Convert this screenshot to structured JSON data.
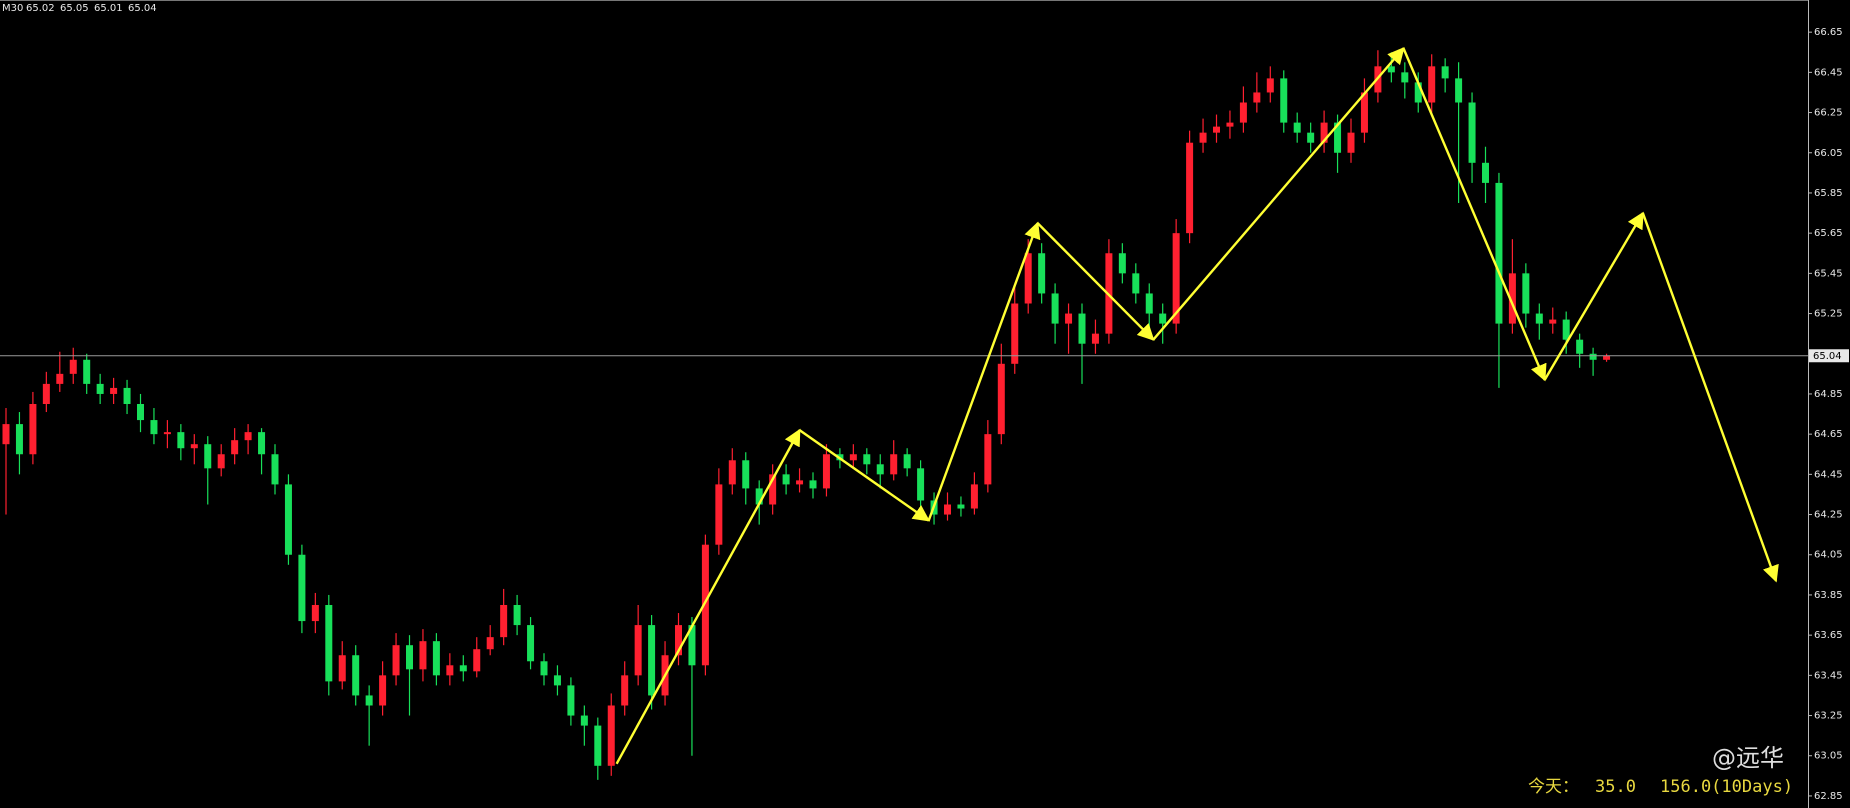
{
  "chart_data": {
    "type": "candlestick",
    "timeframe": "M30",
    "up_color": "#ff2030",
    "down_color": "#18e05a",
    "ylim": [
      62.79,
      66.81
    ],
    "yticks": [
      62.85,
      63.05,
      63.25,
      63.45,
      63.65,
      63.85,
      64.05,
      64.25,
      64.45,
      64.65,
      64.85,
      65.05,
      65.25,
      65.45,
      65.65,
      65.85,
      66.05,
      66.25,
      66.45,
      66.65
    ],
    "open": [
      64.6,
      64.7,
      64.55,
      64.8,
      64.9,
      64.95,
      65.02,
      64.9,
      64.85,
      64.88,
      64.8,
      64.72,
      64.65,
      64.66,
      64.58,
      64.6,
      64.48,
      64.55,
      64.62,
      64.66,
      64.55,
      64.4,
      64.05,
      63.72,
      63.8,
      63.42,
      63.55,
      63.35,
      63.3,
      63.45,
      63.6,
      63.48,
      63.62,
      63.45,
      63.5,
      63.47,
      63.58,
      63.64,
      63.8,
      63.7,
      63.52,
      63.45,
      63.4,
      63.25,
      63.2,
      63.0,
      63.3,
      63.45,
      63.7,
      63.35,
      63.55,
      63.7,
      63.5,
      64.1,
      64.4,
      64.52,
      64.38,
      64.3,
      64.45,
      64.4,
      64.42,
      64.38,
      64.55,
      64.52,
      64.55,
      64.5,
      64.45,
      64.55,
      64.48,
      64.32,
      64.25,
      64.3,
      64.28,
      64.4,
      64.65,
      65.0,
      65.3,
      65.55,
      65.35,
      65.2,
      65.25,
      65.1,
      65.15,
      65.55,
      65.45,
      65.35,
      65.25,
      65.2,
      65.65,
      66.1,
      66.15,
      66.18,
      66.2,
      66.3,
      66.35,
      66.42,
      66.2,
      66.15,
      66.1,
      66.2,
      66.05,
      66.15,
      66.35,
      66.48,
      66.45,
      66.4,
      66.3,
      66.48,
      66.42,
      66.3,
      66.0,
      65.9,
      65.2,
      65.45,
      65.25,
      65.2,
      65.22,
      65.12,
      65.05,
      65.02
    ],
    "high": [
      64.78,
      64.76,
      64.86,
      64.96,
      65.06,
      65.08,
      65.05,
      64.95,
      64.93,
      64.92,
      64.85,
      64.78,
      64.72,
      64.7,
      64.65,
      64.64,
      64.6,
      64.68,
      64.7,
      64.68,
      64.6,
      64.45,
      64.1,
      63.86,
      63.85,
      63.62,
      63.6,
      63.4,
      63.52,
      63.66,
      63.65,
      63.68,
      63.66,
      63.56,
      63.55,
      63.64,
      63.7,
      63.88,
      63.85,
      63.74,
      63.56,
      63.5,
      63.44,
      63.3,
      63.24,
      63.36,
      63.52,
      63.8,
      63.75,
      63.62,
      63.76,
      63.74,
      64.15,
      64.48,
      64.58,
      64.56,
      64.42,
      64.5,
      64.5,
      64.48,
      64.46,
      64.6,
      64.58,
      64.6,
      64.58,
      64.55,
      64.62,
      64.58,
      64.52,
      64.36,
      64.36,
      64.34,
      64.46,
      64.72,
      65.1,
      65.38,
      65.62,
      65.6,
      65.4,
      65.3,
      65.3,
      65.22,
      65.62,
      65.6,
      65.5,
      65.4,
      65.3,
      65.72,
      66.16,
      66.22,
      66.24,
      66.26,
      66.38,
      66.45,
      66.48,
      66.46,
      66.25,
      66.2,
      66.26,
      66.24,
      66.22,
      66.42,
      66.56,
      66.55,
      66.5,
      66.45,
      66.54,
      66.52,
      66.5,
      66.35,
      66.08,
      65.95,
      65.62,
      65.5,
      65.3,
      65.28,
      65.26,
      65.15,
      65.08,
      65.05
    ],
    "low": [
      64.25,
      64.45,
      64.5,
      64.76,
      64.86,
      64.9,
      64.85,
      64.8,
      64.8,
      64.75,
      64.66,
      64.6,
      64.58,
      64.52,
      64.5,
      64.3,
      64.44,
      64.5,
      64.55,
      64.45,
      64.35,
      64.0,
      63.66,
      63.66,
      63.35,
      63.38,
      63.3,
      63.1,
      63.25,
      63.4,
      63.25,
      63.42,
      63.4,
      63.4,
      63.42,
      63.44,
      63.55,
      63.6,
      63.65,
      63.48,
      63.4,
      63.35,
      63.2,
      63.1,
      62.93,
      62.95,
      63.25,
      63.4,
      63.28,
      63.3,
      63.5,
      63.05,
      63.45,
      64.05,
      64.35,
      64.3,
      64.2,
      64.25,
      64.35,
      64.36,
      64.33,
      64.34,
      64.48,
      64.48,
      64.45,
      64.38,
      64.42,
      64.44,
      64.28,
      64.2,
      64.22,
      64.24,
      64.25,
      64.36,
      64.6,
      64.95,
      65.25,
      65.3,
      65.1,
      65.05,
      64.9,
      65.05,
      65.1,
      65.4,
      65.3,
      65.18,
      65.1,
      65.15,
      65.6,
      66.05,
      66.1,
      66.12,
      66.15,
      66.25,
      66.3,
      66.15,
      66.1,
      66.05,
      66.05,
      65.95,
      66.0,
      66.1,
      66.3,
      66.4,
      66.32,
      66.25,
      66.25,
      66.35,
      65.8,
      65.9,
      65.8,
      64.88,
      65.15,
      65.18,
      65.12,
      65.15,
      65.05,
      64.98,
      64.94,
      65.01
    ],
    "close": [
      64.7,
      64.55,
      64.8,
      64.9,
      64.95,
      65.02,
      64.9,
      64.85,
      64.88,
      64.8,
      64.72,
      64.65,
      64.66,
      64.58,
      64.6,
      64.48,
      64.55,
      64.62,
      64.66,
      64.55,
      64.4,
      64.05,
      63.72,
      63.8,
      63.42,
      63.55,
      63.35,
      63.3,
      63.45,
      63.6,
      63.48,
      63.62,
      63.45,
      63.5,
      63.47,
      63.58,
      63.64,
      63.8,
      63.7,
      63.52,
      63.45,
      63.4,
      63.25,
      63.2,
      63.0,
      63.3,
      63.45,
      63.7,
      63.35,
      63.55,
      63.7,
      63.5,
      64.1,
      64.4,
      64.52,
      64.38,
      64.3,
      64.45,
      64.4,
      64.42,
      64.38,
      64.55,
      64.52,
      64.55,
      64.5,
      64.45,
      64.55,
      64.48,
      64.32,
      64.25,
      64.3,
      64.28,
      64.4,
      64.65,
      65.0,
      65.3,
      65.55,
      65.35,
      65.2,
      65.25,
      65.1,
      65.15,
      65.55,
      65.45,
      65.35,
      65.25,
      65.2,
      65.65,
      66.1,
      66.15,
      66.18,
      66.2,
      66.3,
      66.35,
      66.42,
      66.2,
      66.15,
      66.1,
      66.2,
      66.05,
      66.15,
      66.35,
      66.48,
      66.45,
      66.4,
      66.3,
      66.48,
      66.42,
      66.3,
      66.0,
      65.9,
      65.2,
      65.45,
      65.25,
      65.2,
      65.22,
      65.12,
      65.05,
      65.02,
      65.04
    ],
    "arrow_color": "#ffff33",
    "arrows": [
      {
        "x": 45.4,
        "y": 63.01
      },
      {
        "x": 59.0,
        "y": 64.67
      },
      {
        "x": 68.6,
        "y": 64.22
      },
      {
        "x": 76.7,
        "y": 65.7
      },
      {
        "x": 85.3,
        "y": 65.12
      },
      {
        "x": 103.9,
        "y": 66.57
      },
      {
        "x": 114.4,
        "y": 64.92
      },
      {
        "x": 121.7,
        "y": 65.75
      },
      {
        "x": 131.6,
        "y": 63.92
      }
    ]
  },
  "footer": {
    "label": "今天：",
    "today": "35.0",
    "range": "156.0(10Days)"
  },
  "watermark": "@远华"
}
